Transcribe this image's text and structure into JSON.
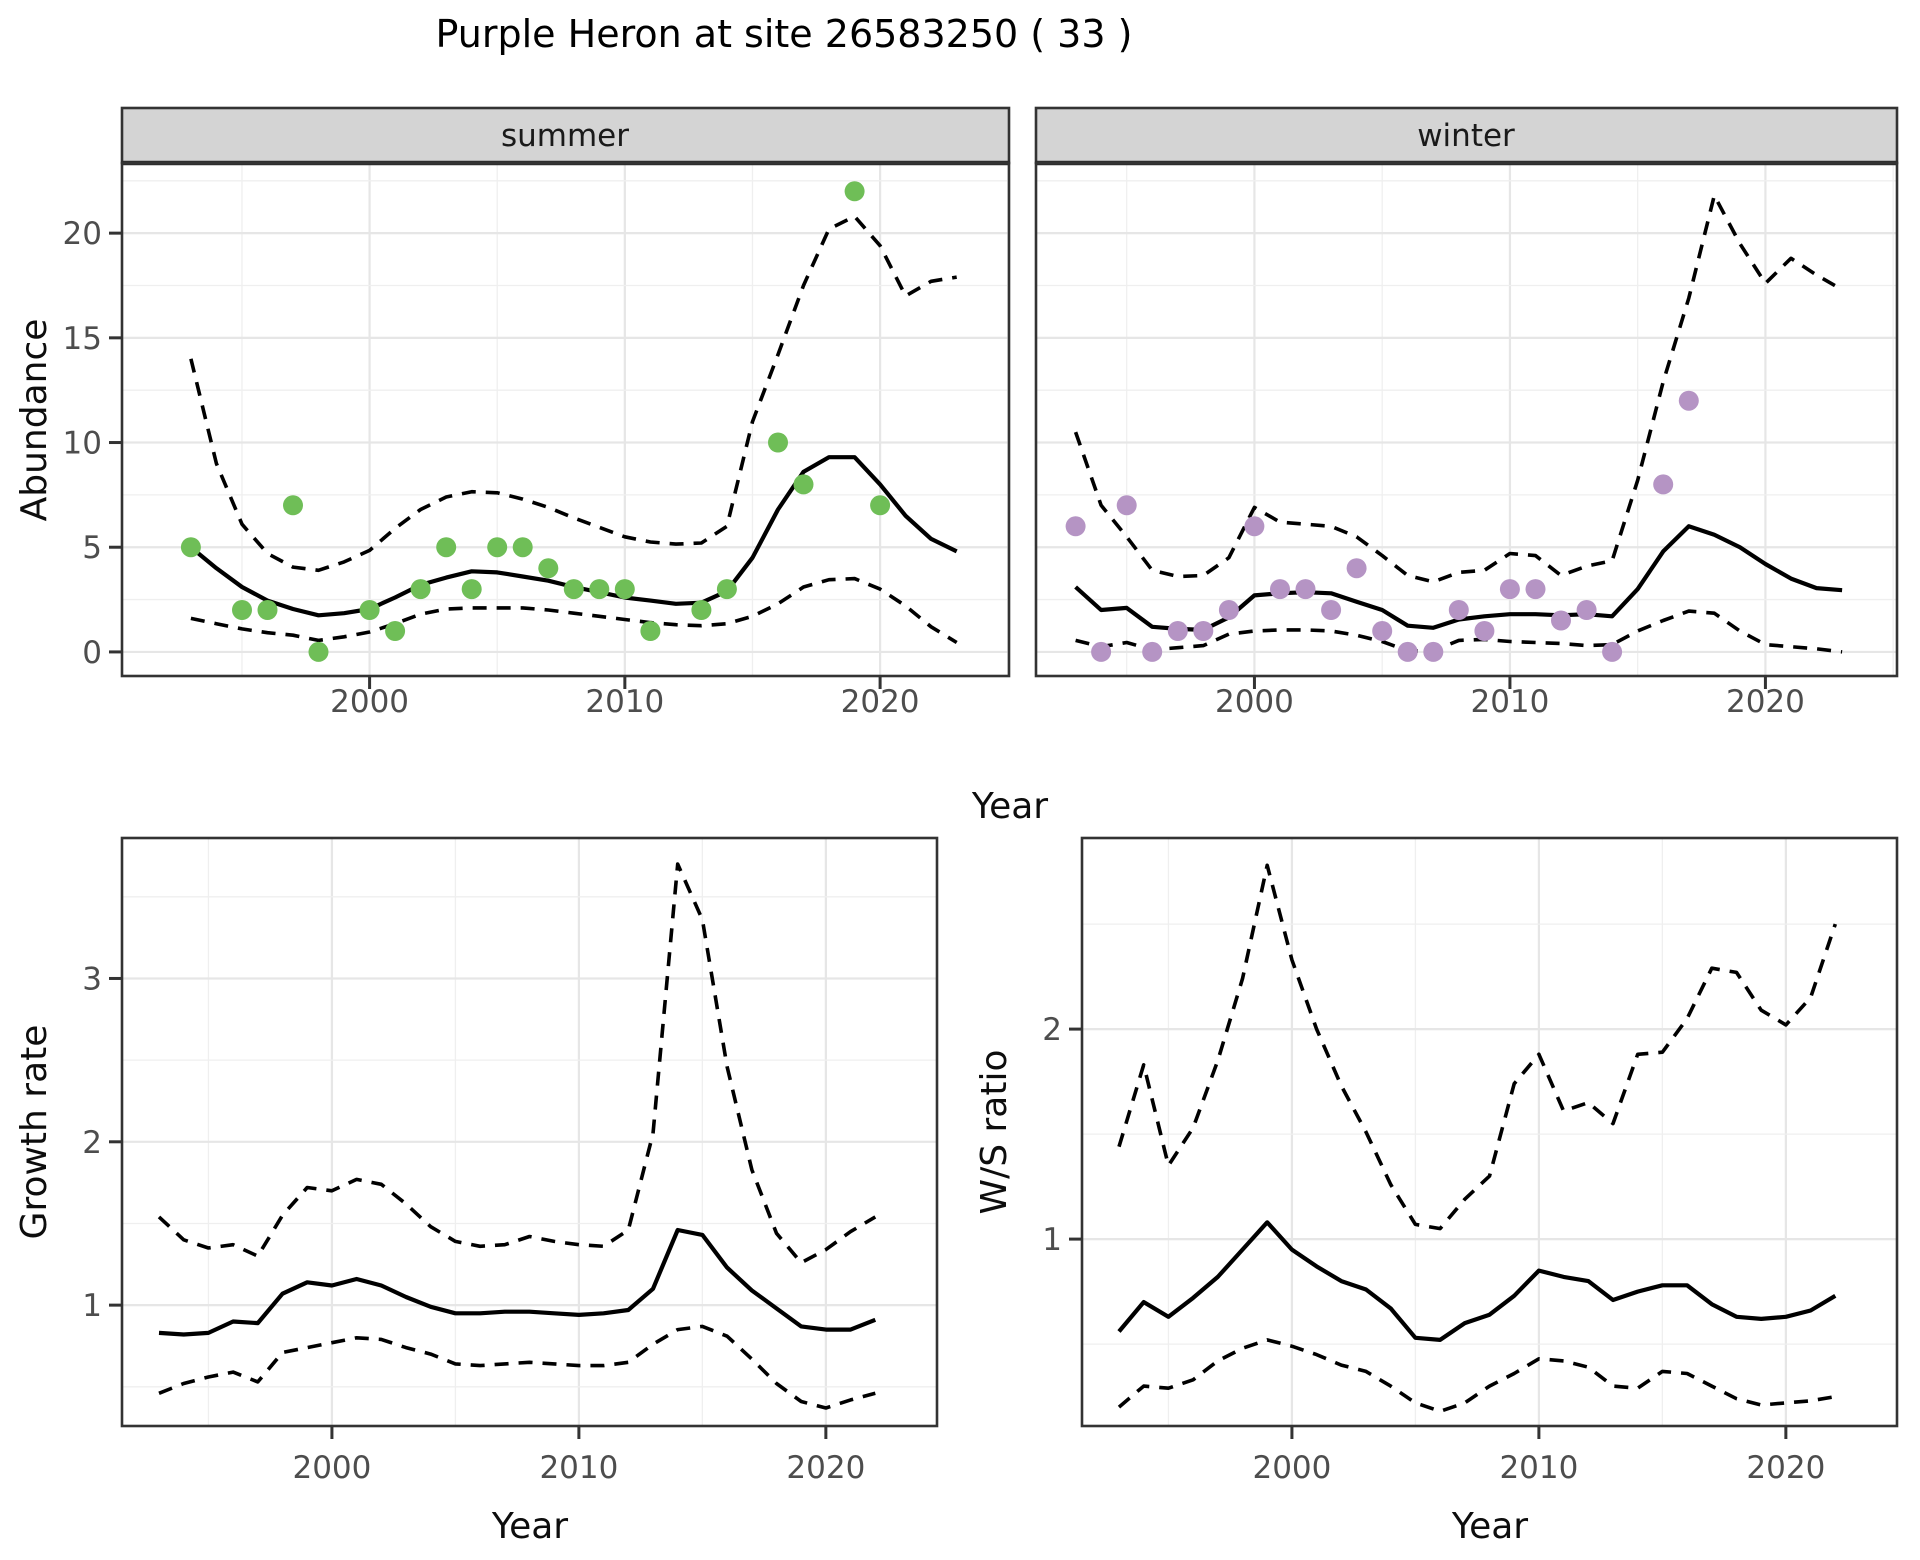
{
  "title": "Purple Heron at site 26583250 ( 33 )",
  "colors": {
    "background": "#ffffff",
    "panel_border": "#333333",
    "strip_fill": "#d4d4d4",
    "grid_major": "#e6e6e6",
    "grid_minor": "#efefef",
    "line": "#000000",
    "tick_text": "#4d4d4d",
    "summer_points": "#6fbe57",
    "winter_points": "#b594c4"
  },
  "chart_data": [
    {
      "id": "abundance_summer",
      "type": "line",
      "facet_label": "summer",
      "xlabel": "Year",
      "ylabel": "Abundance",
      "x_ticks": [
        2000,
        2010,
        2020
      ],
      "y_ticks": [
        0,
        5,
        10,
        15,
        20
      ],
      "xlim": [
        1990.3,
        2025.05
      ],
      "ylim": [
        -1.15,
        23.35
      ],
      "years": [
        1993,
        1994,
        1995,
        1996,
        1997,
        1998,
        1999,
        2000,
        2001,
        2002,
        2003,
        2004,
        2005,
        2006,
        2007,
        2008,
        2009,
        2010,
        2011,
        2012,
        2013,
        2014,
        2015,
        2016,
        2017,
        2018,
        2019,
        2020,
        2021,
        2022,
        2023
      ],
      "series": [
        {
          "name": "fit",
          "style": "solid",
          "values": [
            5.0,
            4.0,
            3.1,
            2.45,
            2.05,
            1.75,
            1.85,
            2.05,
            2.6,
            3.2,
            3.55,
            3.85,
            3.8,
            3.6,
            3.4,
            3.1,
            2.85,
            2.6,
            2.45,
            2.3,
            2.35,
            2.9,
            4.5,
            6.8,
            8.6,
            9.3,
            9.3,
            8.0,
            6.5,
            5.4,
            4.8
          ]
        },
        {
          "name": "upper_ci",
          "style": "dashed",
          "values": [
            14.0,
            9.0,
            6.1,
            4.7,
            4.05,
            3.9,
            4.3,
            4.85,
            5.9,
            6.8,
            7.4,
            7.65,
            7.6,
            7.3,
            6.9,
            6.4,
            5.95,
            5.5,
            5.25,
            5.15,
            5.2,
            6.0,
            11.0,
            14.2,
            17.5,
            20.2,
            20.8,
            19.4,
            17.0,
            17.7,
            17.9
          ]
        },
        {
          "name": "lower_ci",
          "style": "dashed",
          "values": [
            1.6,
            1.35,
            1.1,
            0.92,
            0.8,
            0.55,
            0.72,
            0.95,
            1.35,
            1.8,
            2.05,
            2.1,
            2.1,
            2.1,
            2.0,
            1.85,
            1.7,
            1.55,
            1.4,
            1.3,
            1.25,
            1.35,
            1.7,
            2.3,
            3.1,
            3.45,
            3.5,
            3.0,
            2.2,
            1.2,
            0.45
          ]
        }
      ],
      "points": {
        "name": "summer_counts",
        "color": "#6fbe57",
        "data": [
          [
            1993,
            5
          ],
          [
            1995,
            2
          ],
          [
            1996,
            2
          ],
          [
            1997,
            7
          ],
          [
            1998,
            0
          ],
          [
            2000,
            2
          ],
          [
            2001,
            1
          ],
          [
            2002,
            3
          ],
          [
            2003,
            5
          ],
          [
            2004,
            3
          ],
          [
            2005,
            5
          ],
          [
            2006,
            5
          ],
          [
            2007,
            4
          ],
          [
            2008,
            3
          ],
          [
            2009,
            3
          ],
          [
            2010,
            3
          ],
          [
            2011,
            1
          ],
          [
            2013,
            2
          ],
          [
            2014,
            3
          ],
          [
            2016,
            10
          ],
          [
            2017,
            8
          ],
          [
            2019,
            22
          ],
          [
            2020,
            7
          ]
        ]
      }
    },
    {
      "id": "abundance_winter",
      "type": "line",
      "facet_label": "winter",
      "xlabel": "Year",
      "ylabel": "Abundance",
      "x_ticks": [
        2000,
        2010,
        2020
      ],
      "y_ticks": [
        0,
        5,
        10,
        15,
        20
      ],
      "xlim": [
        1991.45,
        2025.15
      ],
      "ylim": [
        -1.15,
        23.35
      ],
      "years": [
        1993,
        1994,
        1995,
        1996,
        1997,
        1998,
        1999,
        2000,
        2001,
        2002,
        2003,
        2004,
        2005,
        2006,
        2007,
        2008,
        2009,
        2010,
        2011,
        2012,
        2013,
        2014,
        2015,
        2016,
        2017,
        2018,
        2019,
        2020,
        2021,
        2022,
        2023
      ],
      "series": [
        {
          "name": "fit",
          "style": "solid",
          "values": [
            3.1,
            2.0,
            2.1,
            1.2,
            1.1,
            1.05,
            1.65,
            2.7,
            2.8,
            2.85,
            2.8,
            2.4,
            2.0,
            1.25,
            1.15,
            1.55,
            1.7,
            1.8,
            1.8,
            1.75,
            1.8,
            1.7,
            3.0,
            4.8,
            6.0,
            5.6,
            5.0,
            4.2,
            3.5,
            3.05,
            2.95
          ]
        },
        {
          "name": "upper_ci",
          "style": "dashed",
          "values": [
            10.5,
            7.0,
            5.5,
            3.9,
            3.6,
            3.65,
            4.5,
            6.9,
            6.2,
            6.1,
            6.0,
            5.5,
            4.6,
            3.65,
            3.35,
            3.8,
            3.9,
            4.7,
            4.6,
            3.65,
            4.1,
            4.35,
            8.2,
            12.9,
            16.9,
            21.8,
            19.5,
            17.6,
            18.8,
            18.0,
            17.3
          ]
        },
        {
          "name": "lower_ci",
          "style": "dashed",
          "values": [
            0.55,
            0.25,
            0.45,
            0.1,
            0.2,
            0.3,
            0.85,
            1.0,
            1.05,
            1.05,
            1.0,
            0.8,
            0.5,
            0.05,
            0.05,
            0.55,
            0.6,
            0.5,
            0.45,
            0.4,
            0.3,
            0.35,
            1.0,
            1.5,
            1.95,
            1.85,
            1.0,
            0.35,
            0.25,
            0.15,
            0.0
          ]
        }
      ],
      "points": {
        "name": "winter_counts",
        "color": "#b594c4",
        "data": [
          [
            1993,
            6
          ],
          [
            1994,
            0
          ],
          [
            1995,
            7
          ],
          [
            1996,
            0
          ],
          [
            1997,
            1
          ],
          [
            1998,
            1
          ],
          [
            1999,
            2
          ],
          [
            2000,
            6
          ],
          [
            2001,
            3
          ],
          [
            2002,
            3
          ],
          [
            2003,
            2
          ],
          [
            2004,
            4
          ],
          [
            2005,
            1
          ],
          [
            2006,
            0
          ],
          [
            2007,
            0
          ],
          [
            2008,
            2
          ],
          [
            2009,
            1
          ],
          [
            2010,
            3
          ],
          [
            2011,
            3
          ],
          [
            2012,
            1.5
          ],
          [
            2013,
            2
          ],
          [
            2014,
            0
          ],
          [
            2016,
            8
          ],
          [
            2017,
            12
          ]
        ]
      }
    },
    {
      "id": "growth_rate",
      "type": "line",
      "facet_label": null,
      "xlabel": "Year",
      "ylabel": "Growth rate",
      "x_ticks": [
        2000,
        2010,
        2020
      ],
      "y_ticks": [
        1,
        2,
        3
      ],
      "xlim": [
        1991.5,
        2024.5
      ],
      "ylim": [
        0.26,
        3.86
      ],
      "years": [
        1993,
        1994,
        1995,
        1996,
        1997,
        1998,
        1999,
        2000,
        2001,
        2002,
        2003,
        2004,
        2005,
        2006,
        2007,
        2008,
        2009,
        2010,
        2011,
        2012,
        2013,
        2014,
        2015,
        2016,
        2017,
        2018,
        2019,
        2020,
        2021,
        2022
      ],
      "series": [
        {
          "name": "fit",
          "style": "solid",
          "values": [
            0.83,
            0.82,
            0.83,
            0.9,
            0.89,
            1.07,
            1.14,
            1.12,
            1.16,
            1.12,
            1.05,
            0.99,
            0.95,
            0.95,
            0.96,
            0.96,
            0.95,
            0.94,
            0.95,
            0.97,
            1.1,
            1.46,
            1.43,
            1.23,
            1.09,
            0.98,
            0.87,
            0.85,
            0.85,
            0.91
          ]
        },
        {
          "name": "upper_ci",
          "style": "dashed",
          "values": [
            1.54,
            1.4,
            1.35,
            1.37,
            1.3,
            1.55,
            1.72,
            1.7,
            1.77,
            1.74,
            1.62,
            1.48,
            1.39,
            1.36,
            1.37,
            1.42,
            1.39,
            1.37,
            1.36,
            1.46,
            2.05,
            3.7,
            3.36,
            2.46,
            1.83,
            1.44,
            1.26,
            1.34,
            1.45,
            1.54
          ]
        },
        {
          "name": "lower_ci",
          "style": "dashed",
          "values": [
            0.46,
            0.52,
            0.56,
            0.59,
            0.53,
            0.71,
            0.74,
            0.77,
            0.8,
            0.79,
            0.74,
            0.7,
            0.64,
            0.63,
            0.64,
            0.65,
            0.64,
            0.63,
            0.63,
            0.65,
            0.76,
            0.85,
            0.87,
            0.81,
            0.67,
            0.52,
            0.41,
            0.37,
            0.42,
            0.46
          ]
        }
      ],
      "points": null
    },
    {
      "id": "ws_ratio",
      "type": "line",
      "facet_label": null,
      "xlabel": "Year",
      "ylabel": "W/S ratio",
      "x_ticks": [
        2000,
        2010,
        2020
      ],
      "y_ticks": [
        1,
        2
      ],
      "xlim": [
        1991.5,
        2024.5
      ],
      "ylim": [
        0.11,
        2.91
      ],
      "years": [
        1993,
        1994,
        1995,
        1996,
        1997,
        1998,
        1999,
        2000,
        2001,
        2002,
        2003,
        2004,
        2005,
        2006,
        2007,
        2008,
        2009,
        2010,
        2011,
        2012,
        2013,
        2014,
        2015,
        2016,
        2017,
        2018,
        2019,
        2020,
        2021,
        2022
      ],
      "series": [
        {
          "name": "fit",
          "style": "solid",
          "values": [
            0.56,
            0.7,
            0.63,
            0.72,
            0.82,
            0.95,
            1.08,
            0.95,
            0.87,
            0.8,
            0.76,
            0.67,
            0.53,
            0.52,
            0.6,
            0.64,
            0.73,
            0.85,
            0.82,
            0.8,
            0.71,
            0.75,
            0.78,
            0.78,
            0.69,
            0.63,
            0.62,
            0.63,
            0.66,
            0.73
          ]
        },
        {
          "name": "upper_ci",
          "style": "dashed",
          "values": [
            1.44,
            1.83,
            1.35,
            1.53,
            1.85,
            2.24,
            2.78,
            2.33,
            2.0,
            1.73,
            1.51,
            1.26,
            1.07,
            1.05,
            1.19,
            1.3,
            1.74,
            1.88,
            1.61,
            1.65,
            1.55,
            1.88,
            1.89,
            2.05,
            2.29,
            2.27,
            2.09,
            2.02,
            2.15,
            2.5
          ]
        },
        {
          "name": "lower_ci",
          "style": "dashed",
          "values": [
            0.2,
            0.3,
            0.29,
            0.33,
            0.42,
            0.48,
            0.52,
            0.49,
            0.45,
            0.4,
            0.37,
            0.3,
            0.22,
            0.18,
            0.22,
            0.3,
            0.36,
            0.43,
            0.42,
            0.39,
            0.3,
            0.29,
            0.37,
            0.36,
            0.3,
            0.24,
            0.21,
            0.22,
            0.23,
            0.25
          ]
        }
      ],
      "points": null
    }
  ]
}
